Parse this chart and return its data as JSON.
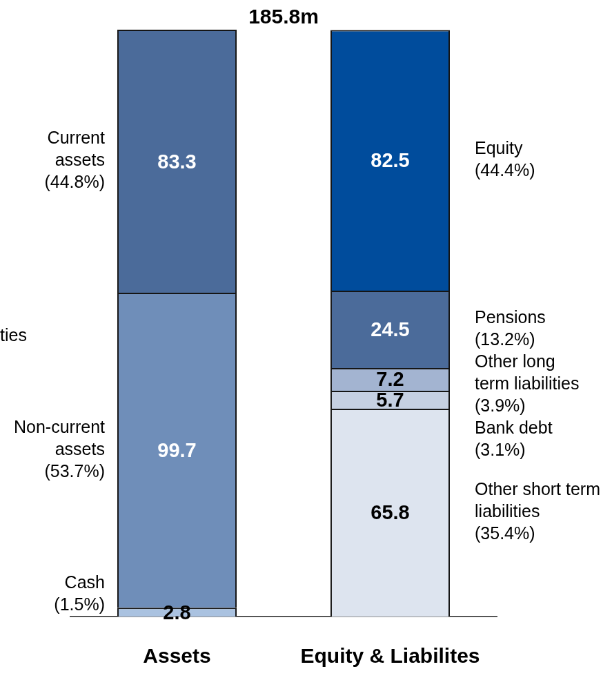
{
  "chart_data": {
    "type": "bar",
    "title": "185.8m",
    "categories": [
      "Assets",
      "Equity & Liabilites"
    ],
    "stacked": true,
    "data_labels": true,
    "series": [
      {
        "name": "Cash\n(1.5%)",
        "color": "#aac2e0",
        "values": [
          2.8,
          null
        ]
      },
      {
        "name": "Non-current\nassets\n(53.7%)",
        "color": "#6f8eb9",
        "values": [
          99.7,
          null
        ]
      },
      {
        "name": "Current\nassets\n(44.8%)",
        "color": "#4b6b9a",
        "values": [
          83.3,
          null
        ]
      },
      {
        "name": "Other short term\nliabilities\n(35.4%)",
        "color": "#dde4ef",
        "values": [
          null,
          65.8
        ]
      },
      {
        "name": "Bank debt\n(3.1%)",
        "color": "#c5d0e2",
        "values": [
          null,
          5.7
        ]
      },
      {
        "name": "Other long\nterm liabilities\n(3.9%)",
        "color": "#a3b4d1",
        "values": [
          null,
          7.2
        ]
      },
      {
        "name": "Pensions\n(13.2%)",
        "color": "#4b6b9a",
        "values": [
          null,
          24.5
        ]
      },
      {
        "name": "Equity\n(44.4%)",
        "color": "#004c9c",
        "values": [
          null,
          82.5
        ]
      }
    ],
    "annotations": [
      "ties"
    ]
  }
}
